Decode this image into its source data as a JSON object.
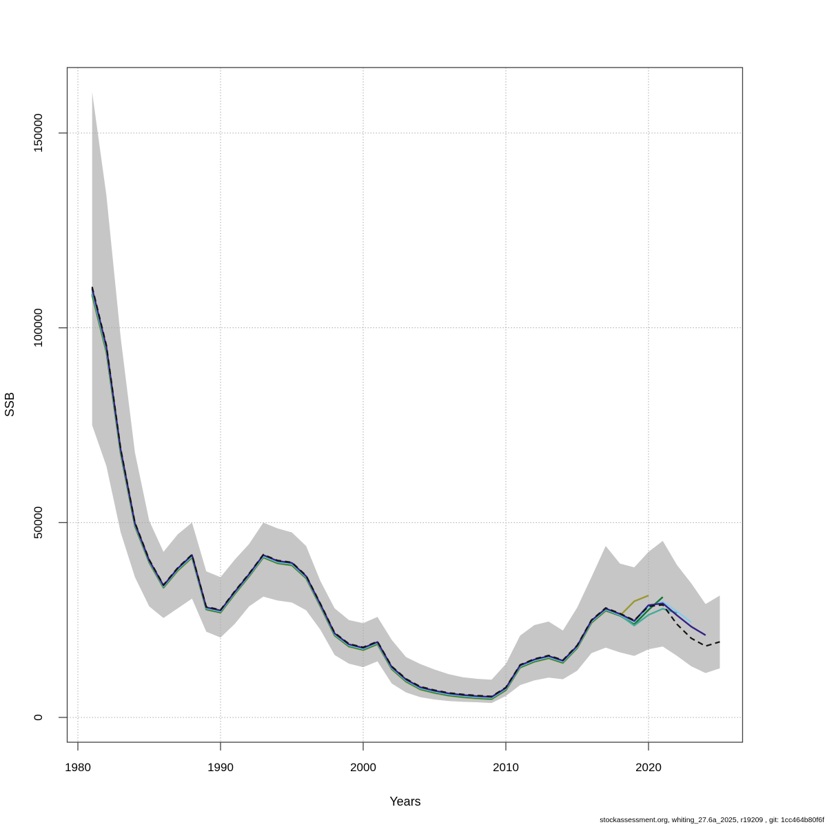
{
  "footer": "stockassessment.org, whiting_27.6a_2025, r19209 , git: 1cc464b80f6f",
  "chart_data": {
    "type": "line",
    "title": "",
    "xlabel": "Years",
    "ylabel": "SSB",
    "xlim": [
      1979.2,
      2026.8
    ],
    "ylim": [
      -6400,
      166800
    ],
    "x_ticks": [
      1980,
      1990,
      2000,
      2010,
      2020
    ],
    "y_ticks": [
      0,
      50000,
      100000,
      150000
    ],
    "grid": true,
    "legend_position": "none",
    "band": {
      "name": "base-run-95pct-confidence-band",
      "color": "#c6c6c6",
      "start_year": 1981,
      "lower": [
        75000,
        64500,
        47500,
        36000,
        28500,
        25500,
        28000,
        30500,
        22000,
        20500,
        24000,
        28500,
        31000,
        30000,
        29500,
        27500,
        22500,
        16000,
        13800,
        12900,
        14400,
        8700,
        6400,
        5200,
        4600,
        4200,
        4000,
        3900,
        3700,
        5500,
        8300,
        9500,
        10200,
        9800,
        12000,
        16500,
        17900,
        16700,
        15800,
        17500,
        18200,
        15800,
        13100,
        11400,
        12600
      ],
      "upper": [
        160500,
        134000,
        97500,
        68000,
        50500,
        42500,
        47000,
        50000,
        37500,
        36000,
        40500,
        44500,
        50000,
        48500,
        47500,
        44000,
        35000,
        28000,
        25000,
        24200,
        25800,
        19900,
        15500,
        13700,
        12300,
        11100,
        10300,
        9900,
        9700,
        13700,
        21000,
        23700,
        24600,
        22300,
        28200,
        36000,
        44000,
        39500,
        38500,
        42500,
        45300,
        39100,
        34400,
        29100,
        31300
      ]
    },
    "series": [
      {
        "id": "retro-peel-2020",
        "color": "#999933",
        "dashed": false,
        "start_year": 1981,
        "end_year": 2020,
        "values": [
          108300,
          93600,
          67600,
          49000,
          39700,
          33250,
          37600,
          41000,
          27650,
          26850,
          31650,
          36150,
          41000,
          39500,
          39000,
          35650,
          28450,
          20950,
          18150,
          17250,
          18750,
          12350,
          9150,
          7150,
          6250,
          5550,
          5150,
          4850,
          4650,
          6950,
          12750,
          14250,
          15150,
          13950,
          17750,
          24250,
          27350,
          26100,
          29800,
          31300
        ]
      },
      {
        "id": "retro-peel-2021",
        "color": "#117733",
        "dashed": false,
        "start_year": 1981,
        "end_year": 2021,
        "values": [
          108700,
          94000,
          67900,
          49200,
          39850,
          33400,
          37800,
          41150,
          27800,
          27000,
          31800,
          36300,
          41150,
          39650,
          39150,
          35800,
          28600,
          21100,
          18300,
          17400,
          18900,
          12500,
          9300,
          7300,
          6400,
          5700,
          5300,
          5000,
          4800,
          7100,
          12900,
          14400,
          15300,
          14100,
          17900,
          24400,
          27500,
          26100,
          23900,
          27600,
          30900
        ]
      },
      {
        "id": "retro-peel-2022",
        "color": "#44AA99",
        "dashed": false,
        "start_year": 1981,
        "end_year": 2022,
        "values": [
          109200,
          94400,
          68200,
          49400,
          40000,
          33550,
          37950,
          41300,
          27950,
          27150,
          31950,
          36450,
          41300,
          39800,
          39300,
          35950,
          28750,
          21250,
          18450,
          17550,
          19050,
          12650,
          9450,
          7450,
          6550,
          5850,
          5450,
          5150,
          4950,
          7250,
          13050,
          14550,
          15450,
          14250,
          18050,
          24550,
          27650,
          26250,
          23600,
          26300,
          27900,
          26800
        ]
      },
      {
        "id": "retro-peel-2023",
        "color": "#88CCEE",
        "dashed": false,
        "start_year": 1981,
        "end_year": 2023,
        "values": [
          109600,
          94700,
          68450,
          49600,
          40200,
          33700,
          38100,
          41450,
          28100,
          27300,
          32100,
          36600,
          41450,
          40000,
          39500,
          36100,
          28900,
          21400,
          18600,
          17700,
          19200,
          12800,
          9600,
          7600,
          6700,
          6000,
          5600,
          5300,
          5100,
          7400,
          13200,
          14700,
          15600,
          14400,
          18200,
          24700,
          27800,
          26400,
          24600,
          28300,
          29700,
          27200,
          24400
        ]
      },
      {
        "id": "retro-peel-2024",
        "color": "#332288",
        "dashed": false,
        "start_year": 1981,
        "end_year": 2024,
        "values": [
          110100,
          95100,
          68700,
          49800,
          40300,
          33850,
          38250,
          41650,
          28250,
          27450,
          32250,
          36750,
          41650,
          40150,
          39650,
          36250,
          29050,
          21550,
          18750,
          17850,
          19350,
          12950,
          9750,
          7750,
          6850,
          6150,
          5750,
          5450,
          5250,
          7550,
          13350,
          14850,
          15750,
          14550,
          18350,
          24850,
          27950,
          26550,
          24750,
          28800,
          29300,
          26200,
          23300,
          21100
        ]
      },
      {
        "id": "base-run-2025",
        "color": "#141414",
        "dashed": true,
        "start_year": 1981,
        "end_year": 2025,
        "values": [
          110500,
          95500,
          69000,
          50000,
          40500,
          34000,
          38400,
          41800,
          28400,
          27600,
          32400,
          36900,
          41800,
          40300,
          39800,
          36400,
          29200,
          21700,
          18900,
          18000,
          19500,
          13100,
          9900,
          7900,
          7000,
          6300,
          5900,
          5600,
          5400,
          7700,
          13500,
          15000,
          15900,
          14700,
          18500,
          25000,
          28100,
          26700,
          24900,
          28500,
          28900,
          23900,
          20300,
          18300,
          19400
        ]
      }
    ]
  },
  "colors": {
    "band": "#c6c6c6",
    "grid": "#a8a8a8",
    "frame": "#404040",
    "base_line": "#141414",
    "peel_2024": "#332288",
    "peel_2023": "#88CCEE",
    "peel_2022": "#44AA99",
    "peel_2021": "#117733",
    "peel_2020": "#999933"
  }
}
